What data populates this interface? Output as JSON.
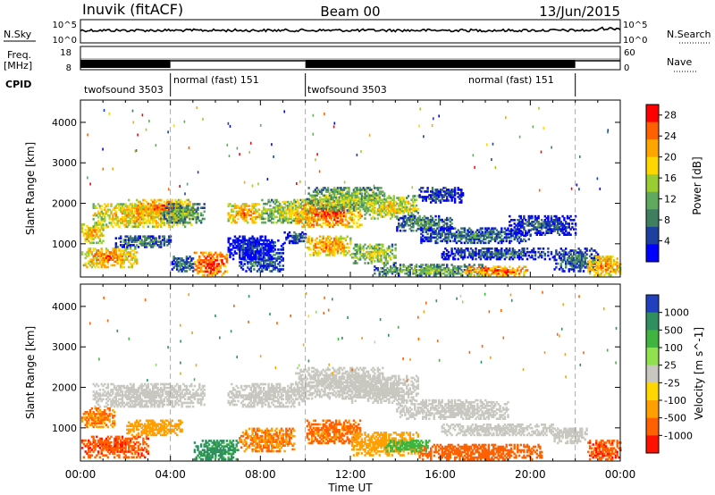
{
  "header": {
    "station": "Inuvik (fitACF)",
    "beam": "Beam 00",
    "date": "13/Jun/2015"
  },
  "noise_panel": {
    "left_label": "N.Sky",
    "right_label": "N.Search",
    "left_ticks": [
      "10^5",
      "10^0"
    ],
    "right_ticks": [
      "10^5",
      "10^0"
    ]
  },
  "freq_panel": {
    "left_label": "Freq.",
    "left_unit": "[MHz]",
    "right_label": "Nave",
    "left_ticks": [
      "18",
      "8"
    ],
    "right_ticks": [
      "60",
      "0"
    ]
  },
  "cpid_panel": {
    "label": "CPID",
    "segments": [
      {
        "start_hour": 0,
        "end_hour": 4,
        "name": "twofsound 3503"
      },
      {
        "start_hour": 4,
        "end_hour": 10,
        "name": "normal (fast) 151"
      },
      {
        "start_hour": 10,
        "end_hour": 22,
        "name": "twofsound 3503"
      },
      {
        "start_hour": 22,
        "end_hour": 24,
        "name": "normal (fast) 151"
      }
    ],
    "label_order": [
      "twofsound 3503",
      "normal (fast) 151",
      "twofsound 3503",
      "normal (fast) 151"
    ]
  },
  "time_axis": {
    "label": "Time UT",
    "ticks": [
      "00:00",
      "04:00",
      "08:00",
      "12:00",
      "16:00",
      "20:00",
      "00:00"
    ],
    "tick_hours": [
      0,
      4,
      8,
      12,
      16,
      20,
      24
    ],
    "mode_change_hours": [
      4,
      10,
      22
    ]
  },
  "range_axis": {
    "label": "Slant Range [km]",
    "ticks": [
      "1000",
      "2000",
      "3000",
      "4000"
    ],
    "tick_values": [
      1000,
      2000,
      3000,
      4000
    ],
    "min": 180,
    "max": 4550
  },
  "chart_data": [
    {
      "type": "heatmap",
      "name": "power",
      "xlabel": "Time UT",
      "ylabel": "Slant Range [km]",
      "colorbar_label": "Power [dB]",
      "colorbar_ticks": [
        "28",
        "24",
        "20",
        "16",
        "12",
        "8",
        "4"
      ],
      "colorbar_tick_values": [
        28,
        24,
        20,
        16,
        12,
        8,
        4
      ],
      "colorbar_range": [
        0,
        30
      ],
      "colors": [
        "#0000ff",
        "#1c3fa0",
        "#3f7f5f",
        "#5faa5f",
        "#9acd32",
        "#ffd700",
        "#ffa500",
        "#ff6000",
        "#ff0000"
      ],
      "blobs": [
        {
          "t0": 0.0,
          "t1": 2.5,
          "r0": 400,
          "r1": 900,
          "v": 24
        },
        {
          "t0": 0.0,
          "t1": 1.0,
          "r0": 1000,
          "r1": 1500,
          "v": 22
        },
        {
          "t0": 0.5,
          "t1": 5.0,
          "r0": 1400,
          "r1": 2000,
          "v": 22
        },
        {
          "t0": 2.0,
          "t1": 5.0,
          "r0": 1700,
          "r1": 2100,
          "v": 24
        },
        {
          "t0": 3.5,
          "t1": 5.5,
          "r0": 1500,
          "r1": 2000,
          "v": 14
        },
        {
          "t0": 1.5,
          "t1": 4.0,
          "r0": 900,
          "r1": 1200,
          "v": 10
        },
        {
          "t0": 6.5,
          "t1": 8.0,
          "r0": 1500,
          "r1": 2000,
          "v": 24
        },
        {
          "t0": 8.0,
          "t1": 10.5,
          "r0": 1500,
          "r1": 2100,
          "v": 18
        },
        {
          "t0": 5.0,
          "t1": 6.5,
          "r0": 200,
          "r1": 800,
          "v": 28
        },
        {
          "t0": 4.0,
          "t1": 5.0,
          "r0": 300,
          "r1": 700,
          "v": 10
        },
        {
          "t0": 7.0,
          "t1": 9.0,
          "r0": 300,
          "r1": 1100,
          "v": 10
        },
        {
          "t0": 6.5,
          "t1": 8.5,
          "r0": 600,
          "r1": 1200,
          "v": 6
        },
        {
          "t0": 9.0,
          "t1": 10.0,
          "r0": 1000,
          "r1": 1300,
          "v": 8
        },
        {
          "t0": 9.5,
          "t1": 12.5,
          "r0": 1400,
          "r1": 2100,
          "v": 26
        },
        {
          "t0": 10.0,
          "t1": 13.5,
          "r0": 1800,
          "r1": 2400,
          "v": 16
        },
        {
          "t0": 12.5,
          "t1": 15.0,
          "r0": 1600,
          "r1": 2200,
          "v": 20
        },
        {
          "t0": 10.0,
          "t1": 12.0,
          "r0": 700,
          "r1": 1200,
          "v": 24
        },
        {
          "t0": 12.0,
          "t1": 14.0,
          "r0": 500,
          "r1": 1000,
          "v": 18
        },
        {
          "t0": 14.0,
          "t1": 16.5,
          "r0": 1300,
          "r1": 1700,
          "v": 12
        },
        {
          "t0": 15.0,
          "t1": 20.0,
          "r0": 1000,
          "r1": 1400,
          "v": 10
        },
        {
          "t0": 16.0,
          "t1": 21.0,
          "r0": 600,
          "r1": 900,
          "v": 8
        },
        {
          "t0": 13.0,
          "t1": 18.0,
          "r0": 200,
          "r1": 500,
          "v": 14
        },
        {
          "t0": 17.0,
          "t1": 20.0,
          "r0": 200,
          "r1": 450,
          "v": 26
        },
        {
          "t0": 15.0,
          "t1": 17.0,
          "r0": 2000,
          "r1": 2400,
          "v": 8
        },
        {
          "t0": 21.0,
          "t1": 23.0,
          "r0": 300,
          "r1": 900,
          "v": 10
        },
        {
          "t0": 22.5,
          "t1": 24.0,
          "r0": 200,
          "r1": 700,
          "v": 24
        },
        {
          "t0": 19.0,
          "t1": 22.0,
          "r0": 1200,
          "r1": 1700,
          "v": 8
        }
      ]
    },
    {
      "type": "heatmap",
      "name": "velocity",
      "xlabel": "Time UT",
      "ylabel": "Slant Range [km]",
      "colorbar_label": "Velocity [m s^-1]",
      "colorbar_ticks": [
        "1000",
        "500",
        "100",
        "25",
        "-25",
        "-100",
        "-500",
        "-1000"
      ],
      "colorbar_tick_values": [
        1000,
        500,
        100,
        25,
        -25,
        -100,
        -500,
        -1000
      ],
      "colors": [
        "#2040c0",
        "#2f8f5f",
        "#3fb43f",
        "#90e050",
        "#c8c8c0",
        "#ffd700",
        "#ffa000",
        "#ff6000",
        "#ff1000"
      ],
      "blobs": [
        {
          "t0": 0.5,
          "t1": 5.5,
          "r0": 1500,
          "r1": 2100,
          "v": 0
        },
        {
          "t0": 0.0,
          "t1": 1.5,
          "r0": 1000,
          "r1": 1500,
          "v": -300
        },
        {
          "t0": 0.0,
          "t1": 3.0,
          "r0": 250,
          "r1": 800,
          "v": -600
        },
        {
          "t0": 2.0,
          "t1": 4.5,
          "r0": 800,
          "r1": 1200,
          "v": -150
        },
        {
          "t0": 6.5,
          "t1": 10.0,
          "r0": 1500,
          "r1": 2100,
          "v": 0
        },
        {
          "t0": 5.0,
          "t1": 7.0,
          "r0": 200,
          "r1": 700,
          "v": 400
        },
        {
          "t0": 7.0,
          "t1": 9.5,
          "r0": 400,
          "r1": 1000,
          "v": -300
        },
        {
          "t0": 9.5,
          "t1": 13.5,
          "r0": 1700,
          "r1": 2500,
          "v": 0
        },
        {
          "t0": 12.0,
          "t1": 15.0,
          "r0": 1600,
          "r1": 2300,
          "v": 0
        },
        {
          "t0": 10.0,
          "t1": 12.5,
          "r0": 600,
          "r1": 1200,
          "v": -400
        },
        {
          "t0": 12.0,
          "t1": 15.0,
          "r0": 300,
          "r1": 900,
          "v": -200
        },
        {
          "t0": 14.0,
          "t1": 19.0,
          "r0": 1200,
          "r1": 1700,
          "v": 0
        },
        {
          "t0": 16.0,
          "t1": 21.0,
          "r0": 800,
          "r1": 1100,
          "v": 0
        },
        {
          "t0": 15.0,
          "t1": 20.5,
          "r0": 200,
          "r1": 600,
          "v": -500
        },
        {
          "t0": 13.5,
          "t1": 15.5,
          "r0": 400,
          "r1": 700,
          "v": 100
        },
        {
          "t0": 22.5,
          "t1": 24.0,
          "r0": 200,
          "r1": 700,
          "v": -600
        },
        {
          "t0": 21.0,
          "t1": 22.5,
          "r0": 600,
          "r1": 1000,
          "v": 0
        }
      ]
    }
  ]
}
